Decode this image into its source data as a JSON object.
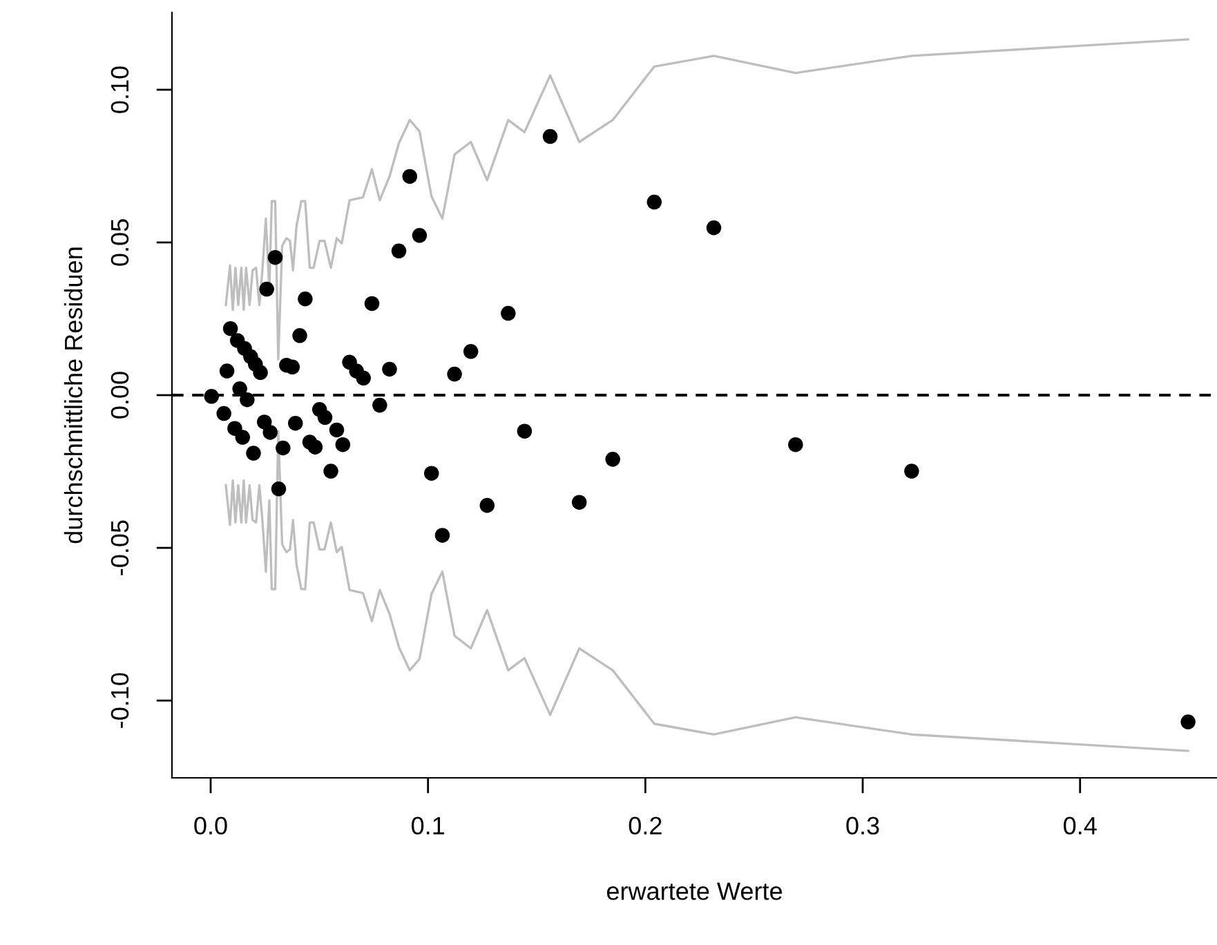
{
  "chart_data": {
    "type": "scatter",
    "xlabel": "erwartete Werte",
    "ylabel": "durchschnittliche Residuen",
    "xlim": [
      -0.0178,
      0.463
    ],
    "ylim": [
      -0.1253,
      0.1253
    ],
    "xticks": [
      {
        "value": 0,
        "label": "0.0"
      },
      {
        "value": 0.1,
        "label": "0.1"
      },
      {
        "value": 0.2,
        "label": "0.2"
      },
      {
        "value": 0.3,
        "label": "0.3"
      },
      {
        "value": 0.4,
        "label": "0.4"
      }
    ],
    "yticks": [
      {
        "value": -0.1,
        "label": "-0.10"
      },
      {
        "value": -0.05,
        "label": "-0.05"
      },
      {
        "value": 0,
        "label": "0.00"
      },
      {
        "value": 0.05,
        "label": "0.05"
      },
      {
        "value": 0.1,
        "label": "0.10"
      }
    ],
    "grid": false,
    "legend": false,
    "ref_lines": [
      {
        "axis": "y",
        "value": 0,
        "color": "#000000",
        "line_style": "dashed"
      }
    ],
    "series": [
      {
        "type": "line",
        "color": "#bebebe",
        "marker": "none",
        "line_style": "solid",
        "x": [
          0.007,
          0.0089,
          0.0102,
          0.0114,
          0.0127,
          0.0141,
          0.0152,
          0.0163,
          0.0179,
          0.0193,
          0.0209,
          0.0224,
          0.0238,
          0.0254,
          0.027,
          0.0281,
          0.0297,
          0.0311,
          0.0329,
          0.0349,
          0.0365,
          0.0379,
          0.0395,
          0.0417,
          0.0435,
          0.0456,
          0.0474,
          0.0501,
          0.0524,
          0.0553,
          0.058,
          0.0603,
          0.0639,
          0.0701,
          0.0742,
          0.0778,
          0.0823,
          0.0866,
          0.0916,
          0.0961,
          0.1016,
          0.1066,
          0.1122,
          0.1197,
          0.1272,
          0.1369,
          0.1444,
          0.1562,
          0.1696,
          0.185,
          0.2041,
          0.2315,
          0.2691,
          0.3225,
          0.4497
        ],
        "values": [
          0.0295,
          0.0425,
          0.0279,
          0.0417,
          0.0295,
          0.0417,
          0.0279,
          0.0417,
          0.0295,
          0.0409,
          0.0417,
          0.0295,
          0.0409,
          0.0578,
          0.0344,
          0.0635,
          0.0635,
          0.0118,
          0.0489,
          0.0514,
          0.0505,
          0.0409,
          0.0554,
          0.0635,
          0.0635,
          0.0417,
          0.0417,
          0.0505,
          0.0505,
          0.0417,
          0.0514,
          0.0497,
          0.0638,
          0.0648,
          0.074,
          0.0638,
          0.0716,
          0.0825,
          0.0901,
          0.0864,
          0.0651,
          0.0578,
          0.0788,
          0.0829,
          0.0704,
          0.0901,
          0.0861,
          0.1047,
          0.0829,
          0.0901,
          0.1076,
          0.1111,
          0.1055,
          0.1111,
          0.1165
        ]
      },
      {
        "type": "line",
        "color": "#bebebe",
        "marker": "none",
        "line_style": "solid",
        "x": [
          0.007,
          0.0089,
          0.0102,
          0.0114,
          0.0127,
          0.0141,
          0.0152,
          0.0163,
          0.0179,
          0.0193,
          0.0209,
          0.0224,
          0.0238,
          0.0254,
          0.027,
          0.0281,
          0.0297,
          0.0311,
          0.0329,
          0.0349,
          0.0365,
          0.0379,
          0.0395,
          0.0417,
          0.0435,
          0.0456,
          0.0474,
          0.0501,
          0.0524,
          0.0553,
          0.058,
          0.0603,
          0.0639,
          0.0701,
          0.0742,
          0.0778,
          0.0823,
          0.0866,
          0.0916,
          0.0961,
          0.1016,
          0.1066,
          0.1122,
          0.1197,
          0.1272,
          0.1369,
          0.1444,
          0.1562,
          0.1696,
          0.185,
          0.2041,
          0.2315,
          0.2691,
          0.3225,
          0.4497
        ],
        "values": [
          -0.0295,
          -0.0425,
          -0.0279,
          -0.0417,
          -0.0295,
          -0.0417,
          -0.0279,
          -0.0417,
          -0.0295,
          -0.0409,
          -0.0417,
          -0.0295,
          -0.0409,
          -0.0578,
          -0.0344,
          -0.0635,
          -0.0635,
          -0.0118,
          -0.0489,
          -0.0514,
          -0.0505,
          -0.0409,
          -0.0554,
          -0.0635,
          -0.0635,
          -0.0417,
          -0.0417,
          -0.0505,
          -0.0505,
          -0.0417,
          -0.0514,
          -0.0497,
          -0.0638,
          -0.0648,
          -0.074,
          -0.0638,
          -0.0716,
          -0.0825,
          -0.0901,
          -0.0864,
          -0.0651,
          -0.0578,
          -0.0788,
          -0.0829,
          -0.0704,
          -0.0901,
          -0.0861,
          -0.1047,
          -0.0829,
          -0.0901,
          -0.1076,
          -0.1111,
          -0.1055,
          -0.1111,
          -0.1165
        ]
      },
      {
        "color": "#000000",
        "marker": "circle",
        "x": [
          0.0004,
          0.0061,
          0.0111,
          0.0075,
          0.0091,
          0.0123,
          0.0156,
          0.0184,
          0.0206,
          0.0229,
          0.0134,
          0.0168,
          0.0147,
          0.0197,
          0.0247,
          0.0274,
          0.0258,
          0.0297,
          0.0313,
          0.0333,
          0.0349,
          0.0376,
          0.039,
          0.041,
          0.0435,
          0.0456,
          0.0481,
          0.0501,
          0.0526,
          0.0553,
          0.058,
          0.0608,
          0.0639,
          0.0671,
          0.0703,
          0.0742,
          0.0778,
          0.0823,
          0.0866,
          0.0916,
          0.0961,
          0.1016,
          0.1066,
          0.1122,
          0.1197,
          0.1272,
          0.1369,
          0.1444,
          0.1562,
          0.1696,
          0.185,
          0.2041,
          0.2315,
          0.2691,
          0.3225,
          0.4497
        ],
        "values": [
          -0.0004,
          -0.006,
          -0.0109,
          0.0079,
          0.0218,
          0.0179,
          0.0153,
          0.0126,
          0.0101,
          0.0074,
          0.0021,
          -0.0015,
          -0.0138,
          -0.019,
          -0.0088,
          -0.0122,
          0.0347,
          0.0451,
          -0.0307,
          -0.0173,
          0.0098,
          0.0092,
          -0.0092,
          0.0195,
          0.0315,
          -0.0154,
          -0.017,
          -0.0047,
          -0.0073,
          -0.0249,
          -0.0114,
          -0.0162,
          0.0108,
          0.0079,
          0.0056,
          0.03,
          -0.0033,
          0.0085,
          0.0472,
          0.0716,
          0.0523,
          -0.0256,
          -0.0459,
          0.0069,
          0.0143,
          -0.0361,
          0.0268,
          -0.0118,
          0.0847,
          -0.0351,
          -0.021,
          0.0632,
          0.0548,
          -0.0162,
          -0.0249,
          -0.107
        ]
      }
    ]
  }
}
